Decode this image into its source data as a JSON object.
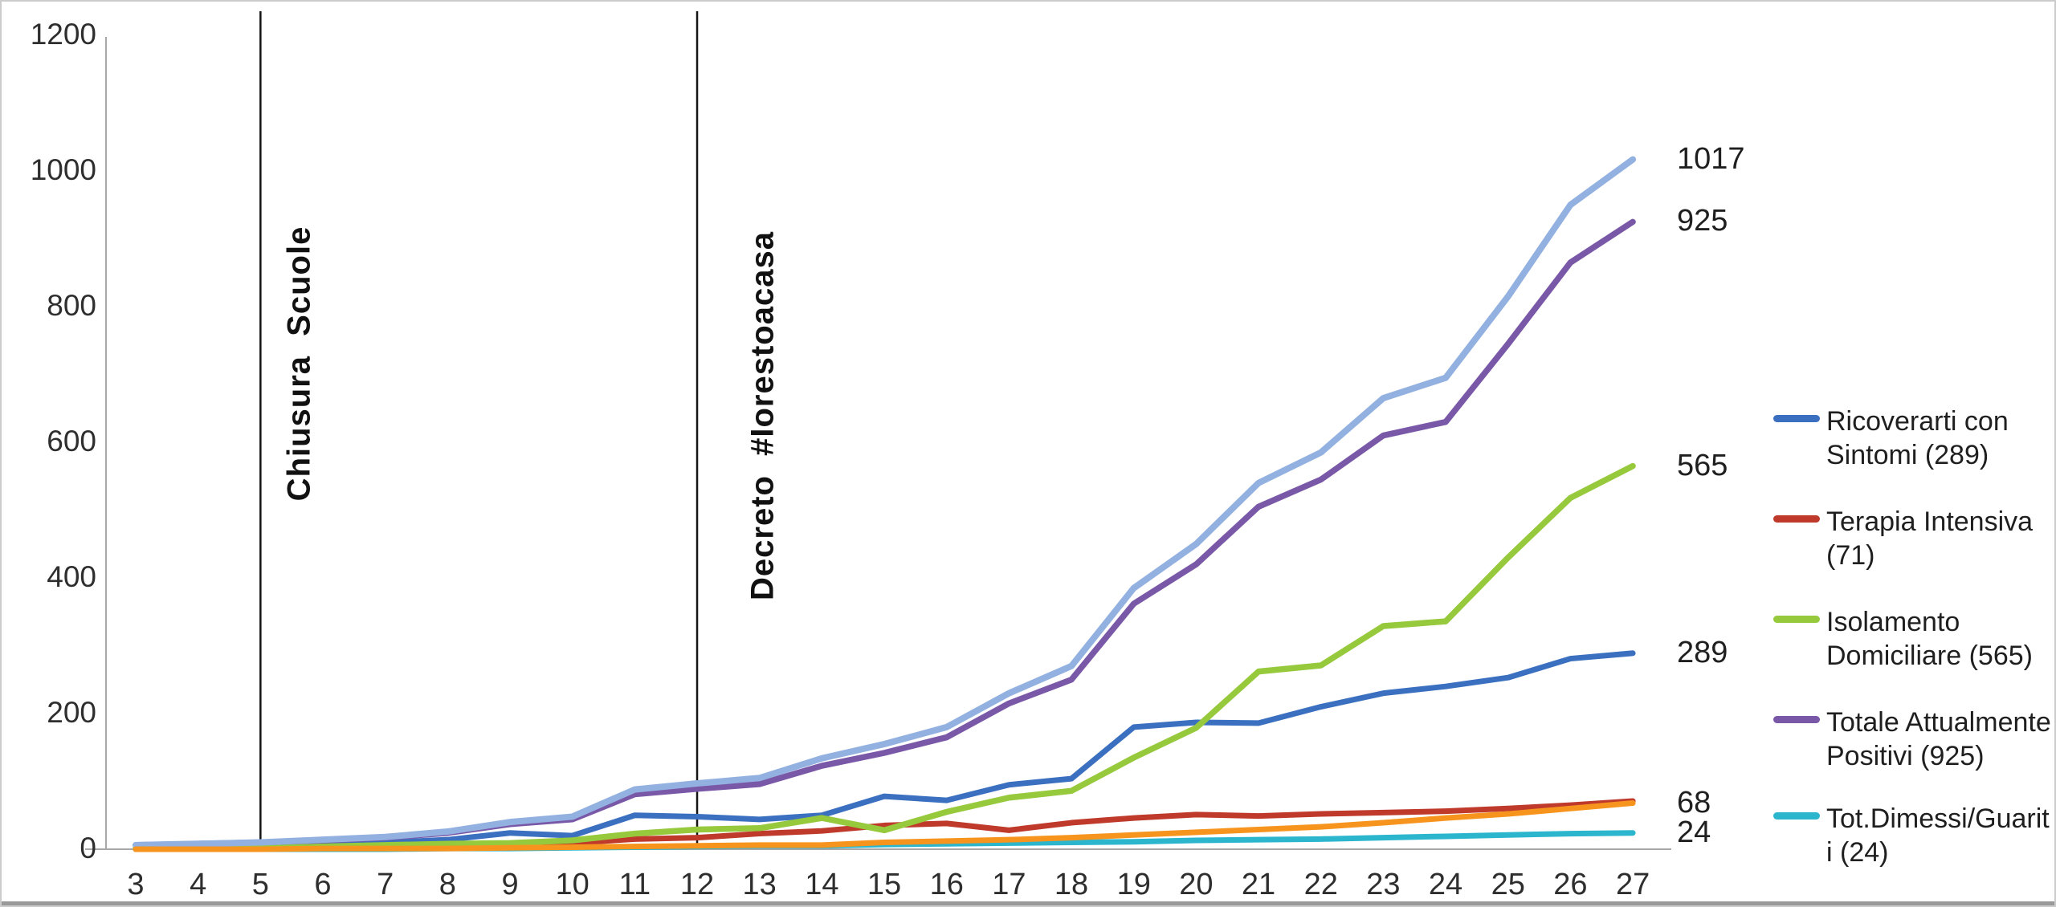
{
  "frame": {
    "background": "#ffffff",
    "border_color": "#cbcbcb",
    "bottom_bar_color": "#999999",
    "axis_color": "#a8a8a8",
    "annotation_line_color": "#141414"
  },
  "chart_data": {
    "type": "line",
    "title": "",
    "xlabel": "",
    "ylabel": "",
    "grid": false,
    "legend_position": "right",
    "ylim": [
      0,
      1200
    ],
    "y_ticks": [
      0,
      200,
      400,
      600,
      800,
      1000,
      1200
    ],
    "x": [
      3,
      4,
      5,
      6,
      7,
      8,
      9,
      10,
      11,
      12,
      13,
      14,
      15,
      16,
      17,
      18,
      19,
      20,
      21,
      22,
      23,
      24,
      25,
      26,
      27
    ],
    "annotations": [
      {
        "label": "Chiusura Scuole",
        "x_day": 5
      },
      {
        "label": "Decreto #Iorestoacasa",
        "x_day": 12
      }
    ],
    "series": [
      {
        "id": "hospitalized-blue",
        "color": "#3b70c0",
        "stroke_width": 7,
        "end_label": "289",
        "values": [
          4,
          5,
          6,
          8,
          10,
          14,
          24,
          20,
          50,
          48,
          44,
          50,
          78,
          72,
          95,
          104,
          180,
          187,
          186,
          210,
          230,
          240,
          253,
          281,
          289
        ]
      },
      {
        "id": "intensive-care-red",
        "color": "#bf3a2b",
        "stroke_width": 7,
        "end_label": null,
        "values": [
          0,
          1,
          2,
          3,
          4,
          5,
          7,
          9,
          15,
          17,
          23,
          27,
          35,
          38,
          28,
          39,
          46,
          51,
          49,
          52,
          54,
          56,
          60,
          65,
          71
        ]
      },
      {
        "id": "recovered-cyan",
        "color": "#2bb6ce",
        "stroke_width": 7,
        "end_label": "24",
        "values": [
          0,
          0,
          0,
          0,
          0,
          1,
          1,
          2,
          3,
          4,
          5,
          5,
          7,
          8,
          9,
          10,
          11,
          13,
          14,
          15,
          17,
          19,
          21,
          23,
          24
        ]
      },
      {
        "id": "home-isolation-green",
        "color": "#97c93d",
        "stroke_width": 7.5,
        "end_label": "565",
        "values": [
          2,
          2,
          2,
          4,
          6,
          8,
          9,
          13,
          23,
          29,
          31,
          46,
          28,
          55,
          76,
          86,
          135,
          179,
          262,
          271,
          329,
          336,
          430,
          518,
          565
        ]
      },
      {
        "id": "currently-positive-purple",
        "color": "#7a58a8",
        "stroke_width": 7.5,
        "end_label": "925",
        "values": [
          6,
          8,
          10,
          13,
          17,
          24,
          37,
          44,
          81,
          89,
          96,
          123,
          142,
          165,
          215,
          250,
          362,
          420,
          505,
          545,
          610,
          630,
          745,
          865,
          925
        ]
      },
      {
        "id": "total-cases-light-blue",
        "color": "#92b1e0",
        "stroke_width": 8,
        "end_label": "1017",
        "values": [
          6,
          8,
          10,
          14,
          18,
          26,
          40,
          48,
          88,
          97,
          105,
          134,
          155,
          180,
          230,
          270,
          385,
          450,
          540,
          585,
          665,
          695,
          815,
          950,
          1017
        ]
      },
      {
        "id": "deceased-orange",
        "color": "#f7941e",
        "stroke_width": 7,
        "end_label": "68",
        "values": [
          0,
          0,
          0,
          1,
          1,
          1,
          2,
          3,
          4,
          5,
          6,
          6,
          10,
          12,
          14,
          17,
          21,
          25,
          29,
          33,
          39,
          46,
          52,
          60,
          68
        ]
      }
    ],
    "legend": [
      {
        "label": "Ricoverarti con Sintomi (289)",
        "color": "#3b70c0"
      },
      {
        "label": "Terapia Intensiva (71)",
        "color": "#bf3a2b"
      },
      {
        "label": "Isolamento Domiciliare (565)",
        "color": "#97c93d"
      },
      {
        "label": "Totale Attualmente Positivi (925)",
        "color": "#7a58a8"
      },
      {
        "label": "Tot.Dimessi/Guariti (24)",
        "color": "#2bb6ce"
      }
    ]
  }
}
